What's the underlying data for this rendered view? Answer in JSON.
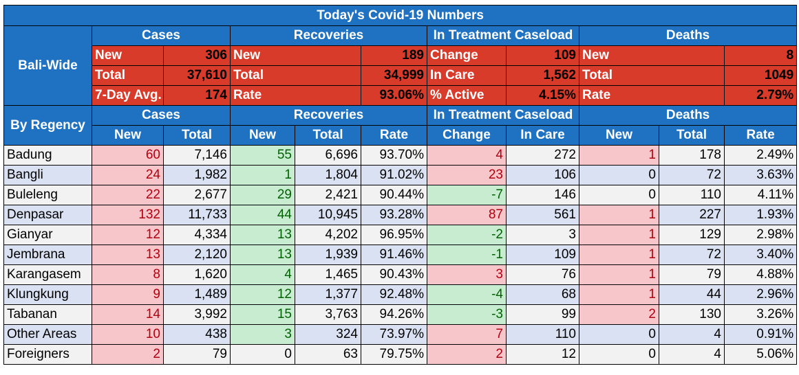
{
  "title": "Today's Covid-19 Numbers",
  "bali_wide_label": "Bali-Wide",
  "by_regency_label": "By Regency",
  "groups": {
    "cases": "Cases",
    "recoveries": "Recoveries",
    "treatment": "In Treatment Caseload",
    "deaths": "Deaths"
  },
  "summary": {
    "cases": [
      {
        "label": "New",
        "value": "306"
      },
      {
        "label": "Total",
        "value": "37,610"
      },
      {
        "label": "7-Day Avg.",
        "value": "174"
      }
    ],
    "recoveries": [
      {
        "label": "New",
        "value": "189"
      },
      {
        "label": "Total",
        "value": "34,999"
      },
      {
        "label": "Rate",
        "value": "93.06%"
      }
    ],
    "treatment": [
      {
        "label": "Change",
        "value": "109"
      },
      {
        "label": "In Care",
        "value": "1,562"
      },
      {
        "label": "% Active",
        "value": "4.15%"
      }
    ],
    "deaths": [
      {
        "label": "New",
        "value": "8"
      },
      {
        "label": "Total",
        "value": "1049"
      },
      {
        "label": "Rate",
        "value": "2.79%"
      }
    ]
  },
  "subheaders": [
    "New",
    "Total",
    "New",
    "Total",
    "Rate",
    "Change",
    "In Care",
    "New",
    "Total",
    "Rate"
  ],
  "rows": [
    {
      "name": "Badung",
      "cases_new": "60",
      "cases_total": "7,146",
      "rec_new": "55",
      "rec_total": "6,696",
      "rec_rate": "93.70%",
      "change": "4",
      "in_care": "272",
      "deaths_new": "1",
      "deaths_total": "178",
      "deaths_rate": "2.49%"
    },
    {
      "name": "Bangli",
      "cases_new": "24",
      "cases_total": "1,982",
      "rec_new": "1",
      "rec_total": "1,804",
      "rec_rate": "91.02%",
      "change": "23",
      "in_care": "106",
      "deaths_new": "0",
      "deaths_total": "72",
      "deaths_rate": "3.63%"
    },
    {
      "name": "Buleleng",
      "cases_new": "22",
      "cases_total": "2,677",
      "rec_new": "29",
      "rec_total": "2,421",
      "rec_rate": "90.44%",
      "change": "-7",
      "in_care": "146",
      "deaths_new": "0",
      "deaths_total": "110",
      "deaths_rate": "4.11%"
    },
    {
      "name": "Denpasar",
      "cases_new": "132",
      "cases_total": "11,733",
      "rec_new": "44",
      "rec_total": "10,945",
      "rec_rate": "93.28%",
      "change": "87",
      "in_care": "561",
      "deaths_new": "1",
      "deaths_total": "227",
      "deaths_rate": "1.93%"
    },
    {
      "name": "Gianyar",
      "cases_new": "12",
      "cases_total": "4,334",
      "rec_new": "13",
      "rec_total": "4,202",
      "rec_rate": "96.95%",
      "change": "-2",
      "in_care": "3",
      "deaths_new": "1",
      "deaths_total": "129",
      "deaths_rate": "2.98%"
    },
    {
      "name": "Jembrana",
      "cases_new": "13",
      "cases_total": "2,120",
      "rec_new": "13",
      "rec_total": "1,939",
      "rec_rate": "91.46%",
      "change": "-1",
      "in_care": "109",
      "deaths_new": "1",
      "deaths_total": "72",
      "deaths_rate": "3.40%"
    },
    {
      "name": "Karangasem",
      "cases_new": "8",
      "cases_total": "1,620",
      "rec_new": "4",
      "rec_total": "1,465",
      "rec_rate": "90.43%",
      "change": "3",
      "in_care": "76",
      "deaths_new": "1",
      "deaths_total": "79",
      "deaths_rate": "4.88%"
    },
    {
      "name": "Klungkung",
      "cases_new": "9",
      "cases_total": "1,489",
      "rec_new": "12",
      "rec_total": "1,377",
      "rec_rate": "92.48%",
      "change": "-4",
      "in_care": "68",
      "deaths_new": "1",
      "deaths_total": "44",
      "deaths_rate": "2.96%"
    },
    {
      "name": "Tabanan",
      "cases_new": "14",
      "cases_total": "3,992",
      "rec_new": "15",
      "rec_total": "3,763",
      "rec_rate": "94.26%",
      "change": "-3",
      "in_care": "99",
      "deaths_new": "2",
      "deaths_total": "130",
      "deaths_rate": "3.26%"
    },
    {
      "name": "Other Areas",
      "cases_new": "10",
      "cases_total": "438",
      "rec_new": "3",
      "rec_total": "324",
      "rec_rate": "73.97%",
      "change": "7",
      "in_care": "110",
      "deaths_new": "0",
      "deaths_total": "4",
      "deaths_rate": "0.91%"
    },
    {
      "name": "Foreigners",
      "cases_new": "2",
      "cases_total": "79",
      "rec_new": "0",
      "rec_total": "63",
      "rec_rate": "79.75%",
      "change": "2",
      "in_care": "12",
      "deaths_new": "0",
      "deaths_total": "4",
      "deaths_rate": "5.06%"
    }
  ],
  "colors": {
    "header_blue": "#1f72c2",
    "summary_red": "#d93b2b",
    "positive_pink": "#f7c6cb",
    "negative_green": "#c7eccf",
    "row_white": "#f2f2f2",
    "row_blue": "#d9e1f2"
  }
}
